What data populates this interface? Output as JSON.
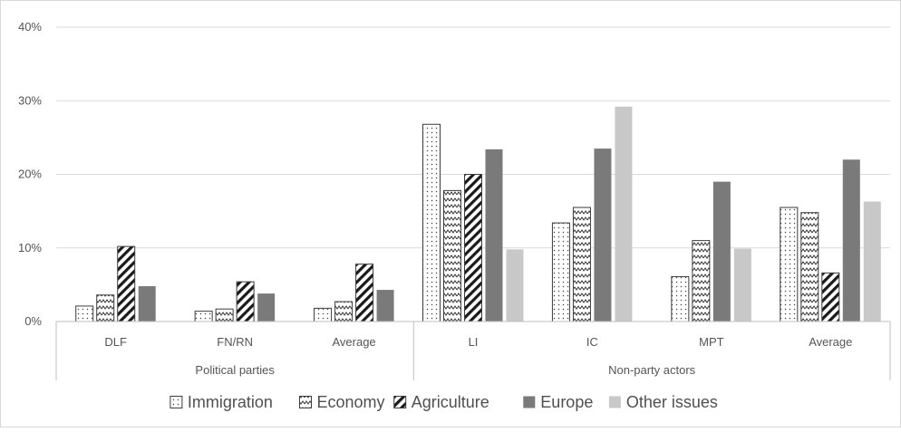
{
  "chart_data": {
    "type": "bar",
    "title": "",
    "xlabel": "",
    "ylabel": "",
    "ylim": [
      0,
      40
    ],
    "yticks": [
      "0%",
      "10%",
      "20%",
      "30%",
      "40%"
    ],
    "grid": true,
    "legend_position": "bottom",
    "groups": [
      {
        "label": "Political parties",
        "categories": [
          "DLF",
          "FN/RN",
          "Average"
        ]
      },
      {
        "label": "Non-party actors",
        "categories": [
          "LI",
          "IC",
          "MPT",
          "Average"
        ]
      }
    ],
    "categories": [
      "DLF",
      "FN/RN",
      "Average",
      "LI",
      "IC",
      "MPT",
      "Average"
    ],
    "series": [
      {
        "name": "Immigration",
        "pattern": "dots",
        "color": "#ffffff",
        "values": [
          2.1,
          1.4,
          1.8,
          26.8,
          13.4,
          6.1,
          15.5
        ]
      },
      {
        "name": "Economy",
        "pattern": "zigzag",
        "color": "#ffffff",
        "values": [
          3.6,
          1.7,
          2.7,
          17.8,
          15.5,
          11.0,
          14.8
        ]
      },
      {
        "name": "Agriculture",
        "pattern": "diagonal",
        "color": "#ffffff",
        "values": [
          10.2,
          5.4,
          7.8,
          20.0,
          0,
          0,
          6.6
        ]
      },
      {
        "name": "Europe",
        "pattern": "solid",
        "color": "#7a7a7a",
        "values": [
          4.8,
          3.8,
          4.3,
          23.4,
          23.5,
          19.0,
          22.0
        ]
      },
      {
        "name": "Other issues",
        "pattern": "solid",
        "color": "#c8c8c8",
        "values": [
          0,
          0,
          0,
          9.8,
          29.2,
          9.9,
          16.3
        ]
      }
    ]
  }
}
